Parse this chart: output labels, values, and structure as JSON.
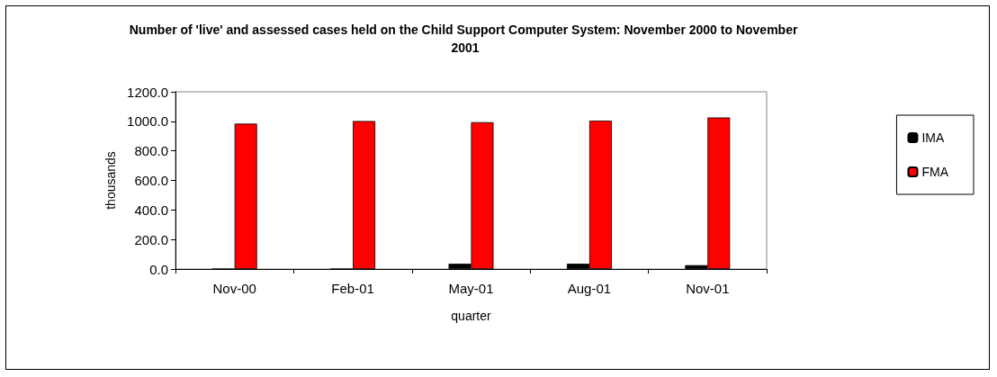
{
  "chart_data": {
    "type": "bar",
    "title": "Number of 'live' and assessed cases held on the Child Support Computer System: November 2000 to November 2001",
    "xlabel": "quarter",
    "ylabel": "thousands",
    "categories": [
      "Nov-00",
      "Feb-01",
      "May-01",
      "Aug-01",
      "Nov-01"
    ],
    "series": [
      {
        "name": "IMA",
        "color": "#000000",
        "values": [
          0,
          0,
          36,
          36,
          26
        ]
      },
      {
        "name": "FMA",
        "color": "#ff0000",
        "values": [
          984,
          1002,
          994,
          1004,
          1026
        ]
      }
    ],
    "ylim": [
      0,
      1200
    ],
    "yticks": [
      {
        "value": 0,
        "label": "0.0"
      },
      {
        "value": 200,
        "label": "200.0"
      },
      {
        "value": 400,
        "label": "400.0"
      },
      {
        "value": 600,
        "label": "600.0"
      },
      {
        "value": 800,
        "label": "800.0"
      },
      {
        "value": 1000,
        "label": "1000.0"
      },
      {
        "value": 1200,
        "label": "1200.0"
      }
    ],
    "grid": false,
    "legend": "right"
  }
}
